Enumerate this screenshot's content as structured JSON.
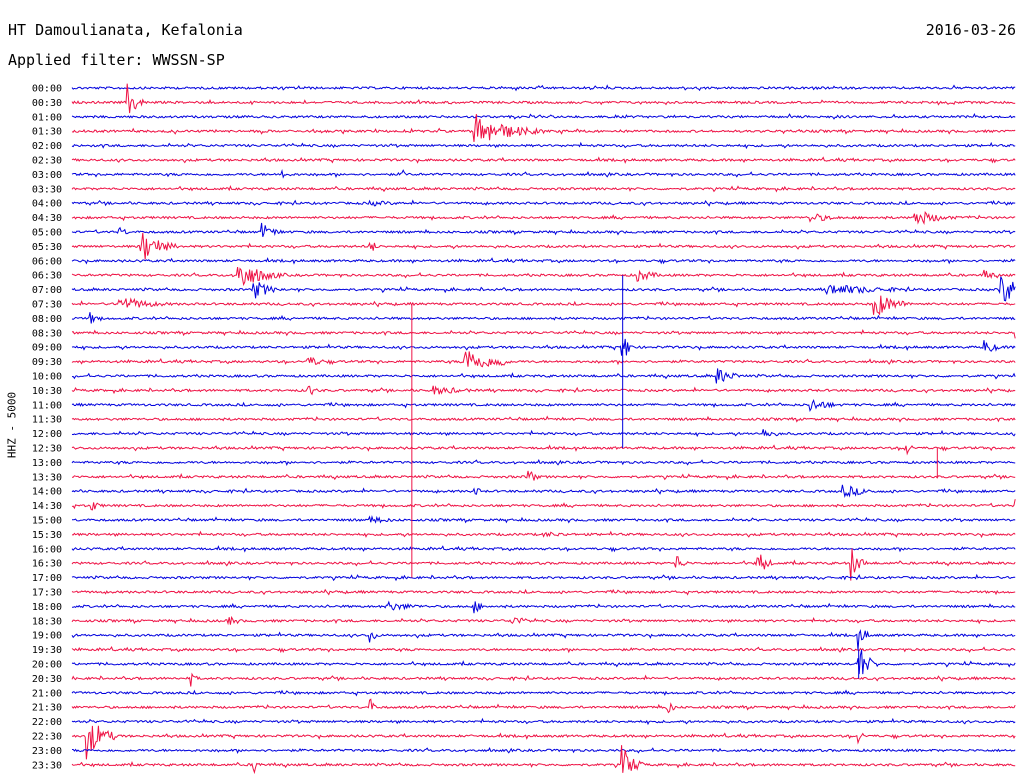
{
  "header": {
    "station": "HT Damoulianata, Kefalonia",
    "date": "2016-03-26",
    "filter": "Applied filter: WWSSN-SP"
  },
  "channel_label": "HHZ - 5000",
  "colors": {
    "blue": "#0000dd",
    "red": "#ee1144"
  },
  "chart_data": {
    "type": "line",
    "title": "HT Damoulianata, Kefalonia",
    "xlabel": "",
    "ylabel": "HHZ - 5000",
    "row_duration_minutes": 30,
    "row_labels": [
      "00:00",
      "00:30",
      "01:00",
      "01:30",
      "02:00",
      "02:30",
      "03:00",
      "03:30",
      "04:00",
      "04:30",
      "05:00",
      "05:30",
      "06:00",
      "06:30",
      "07:00",
      "07:30",
      "08:00",
      "08:30",
      "09:00",
      "09:30",
      "10:00",
      "10:30",
      "11:00",
      "11:30",
      "12:00",
      "12:30",
      "13:00",
      "13:30",
      "14:00",
      "14:30",
      "15:00",
      "15:30",
      "16:00",
      "16:30",
      "17:00",
      "17:30",
      "18:00",
      "18:30",
      "19:00",
      "19:30",
      "20:00",
      "20:30",
      "21:00",
      "21:30",
      "22:00",
      "22:30",
      "23:00",
      "23:30"
    ],
    "row_colors": [
      "blue",
      "red"
    ],
    "events": [
      {
        "row": "00:30",
        "minute": 1.8,
        "amp": 16,
        "dur": 0.6
      },
      {
        "row": "01:30",
        "minute": 12.8,
        "amp": 18,
        "dur": 2.2
      },
      {
        "row": "03:00",
        "minute": 6.7,
        "amp": 7,
        "dur": 0.3
      },
      {
        "row": "03:00",
        "minute": 10.5,
        "amp": 5,
        "dur": 0.3
      },
      {
        "row": "04:00",
        "minute": 9.5,
        "amp": 3,
        "dur": 2
      },
      {
        "row": "04:30",
        "minute": 26.8,
        "amp": 9,
        "dur": 1.5
      },
      {
        "row": "04:30",
        "minute": 23.5,
        "amp": 5,
        "dur": 1.5
      },
      {
        "row": "05:00",
        "minute": 6,
        "amp": 10,
        "dur": 0.8
      },
      {
        "row": "05:00",
        "minute": 1.5,
        "amp": 6,
        "dur": 0.5
      },
      {
        "row": "05:30",
        "minute": 2.2,
        "amp": 18,
        "dur": 1.2
      },
      {
        "row": "05:30",
        "minute": 9.5,
        "amp": 8,
        "dur": 0.3
      },
      {
        "row": "06:30",
        "minute": 5.3,
        "amp": 16,
        "dur": 1.5
      },
      {
        "row": "06:30",
        "minute": 18,
        "amp": 7,
        "dur": 1
      },
      {
        "row": "06:30",
        "minute": 29,
        "amp": 8,
        "dur": 0.5
      },
      {
        "row": "07:00",
        "minute": 5.8,
        "amp": 10,
        "dur": 1
      },
      {
        "row": "07:00",
        "minute": 29.5,
        "amp": 16,
        "dur": 1.5
      },
      {
        "row": "07:00",
        "minute": 24,
        "amp": 6,
        "dur": 4
      },
      {
        "row": "07:30",
        "minute": 1.5,
        "amp": 8,
        "dur": 2
      },
      {
        "row": "07:30",
        "minute": 25.5,
        "amp": 15,
        "dur": 1.2
      },
      {
        "row": "08:00",
        "minute": 0.6,
        "amp": 6,
        "dur": 0.5
      },
      {
        "row": "08:30",
        "minute": 30,
        "amp": 8,
        "dur": 0.5
      },
      {
        "row": "09:00",
        "minute": 17.5,
        "amp": 18,
        "dur": 0.4
      },
      {
        "row": "09:00",
        "minute": 29,
        "amp": 8,
        "dur": 0.8
      },
      {
        "row": "09:30",
        "minute": 12.5,
        "amp": 16,
        "dur": 1.4
      },
      {
        "row": "09:30",
        "minute": 7.5,
        "amp": 6,
        "dur": 1
      },
      {
        "row": "09:30",
        "minute": 13.5,
        "amp": 10,
        "dur": 0.5
      },
      {
        "row": "10:00",
        "minute": 20.5,
        "amp": 9,
        "dur": 1
      },
      {
        "row": "10:30",
        "minute": 7.5,
        "amp": 7,
        "dur": 0.5
      },
      {
        "row": "10:30",
        "minute": 11.5,
        "amp": 5,
        "dur": 2
      },
      {
        "row": "11:00",
        "minute": 23.5,
        "amp": 7,
        "dur": 1.2
      },
      {
        "row": "12:00",
        "minute": 22,
        "amp": 5,
        "dur": 1
      },
      {
        "row": "12:00",
        "minute": 30.5,
        "amp": 6,
        "dur": 0.4
      },
      {
        "row": "12:30",
        "minute": 26.5,
        "amp": 9,
        "dur": 0.3
      },
      {
        "row": "13:30",
        "minute": 14.5,
        "amp": 10,
        "dur": 0.4
      },
      {
        "row": "14:00",
        "minute": 24.5,
        "amp": 7,
        "dur": 1.5
      },
      {
        "row": "14:00",
        "minute": 12.8,
        "amp": 6,
        "dur": 0.3
      },
      {
        "row": "14:30",
        "minute": 0.6,
        "amp": 7,
        "dur": 0.5
      },
      {
        "row": "14:30",
        "minute": 30,
        "amp": 7,
        "dur": 0.3
      },
      {
        "row": "15:00",
        "minute": 9.5,
        "amp": 4,
        "dur": 1.5
      },
      {
        "row": "15:30",
        "minute": 15,
        "amp": 3,
        "dur": 2
      },
      {
        "row": "16:30",
        "minute": 19.2,
        "amp": 11,
        "dur": 0.4
      },
      {
        "row": "16:30",
        "minute": 21.8,
        "amp": 16,
        "dur": 0.5
      },
      {
        "row": "16:30",
        "minute": 24.8,
        "amp": 16,
        "dur": 0.5
      },
      {
        "row": "18:00",
        "minute": 10,
        "amp": 5,
        "dur": 2
      },
      {
        "row": "18:00",
        "minute": 12.8,
        "amp": 7,
        "dur": 0.5
      },
      {
        "row": "18:30",
        "minute": 5,
        "amp": 5,
        "dur": 0.6
      },
      {
        "row": "18:30",
        "minute": 14,
        "amp": 5,
        "dur": 1
      },
      {
        "row": "19:00",
        "minute": 9.5,
        "amp": 8,
        "dur": 0.3
      },
      {
        "row": "19:00",
        "minute": 25,
        "amp": 14,
        "dur": 0.4
      },
      {
        "row": "20:00",
        "minute": 25,
        "amp": 22,
        "dur": 0.6
      },
      {
        "row": "20:30",
        "minute": 3.8,
        "amp": 7,
        "dur": 0.3
      },
      {
        "row": "21:30",
        "minute": 9.5,
        "amp": 8,
        "dur": 0.3
      },
      {
        "row": "21:30",
        "minute": 18.9,
        "amp": 9,
        "dur": 0.4
      },
      {
        "row": "22:30",
        "minute": 0.5,
        "amp": 22,
        "dur": 1
      },
      {
        "row": "22:30",
        "minute": 25,
        "amp": 7,
        "dur": 0.3
      },
      {
        "row": "23:30",
        "minute": 5.8,
        "amp": 8,
        "dur": 0.3
      },
      {
        "row": "23:30",
        "minute": 17.5,
        "amp": 20,
        "dur": 0.7
      }
    ],
    "long_spikes": [
      {
        "from": "07:30",
        "to": "17:00",
        "minute": 10.8,
        "color": "red"
      },
      {
        "from": "06:30",
        "to": "12:30",
        "minute": 17.5,
        "color": "blue"
      },
      {
        "from": "12:30",
        "to": "13:30",
        "minute": 27.5,
        "color": "red"
      },
      {
        "from": "19:30",
        "to": "20:30",
        "minute": 25,
        "color": "blue"
      }
    ]
  }
}
